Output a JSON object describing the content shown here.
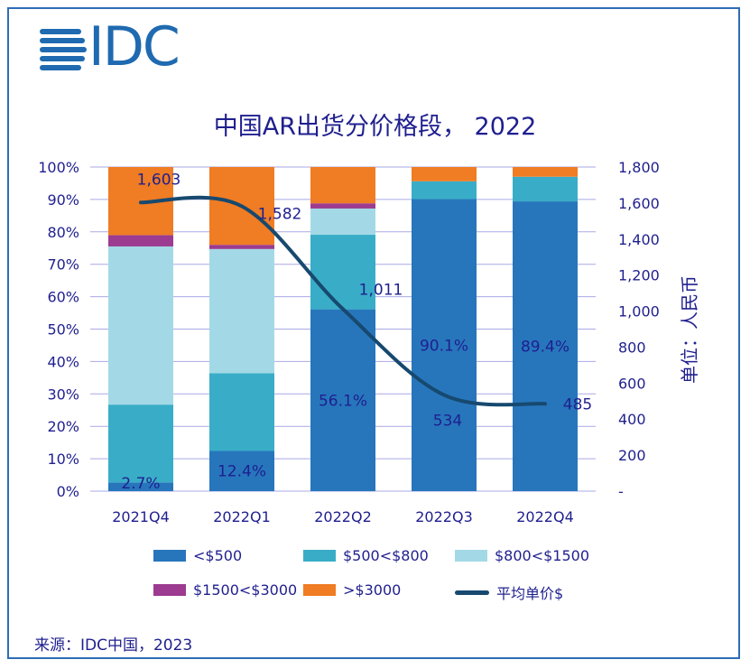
{
  "logo": {
    "text": "IDC"
  },
  "chart_data": {
    "type": "bar",
    "title": "中国AR出货分价格段， 2022",
    "categories": [
      "2021Q4",
      "2022Q1",
      "2022Q2",
      "2022Q3",
      "2022Q4"
    ],
    "series": [
      {
        "name": "<$500",
        "color": "#2776bc",
        "values": [
          2.7,
          12.4,
          56.1,
          90.1,
          89.4
        ]
      },
      {
        "name": "$500<$800",
        "color": "#39adc7",
        "values": [
          24.0,
          24.0,
          23.0,
          5.5,
          7.6
        ]
      },
      {
        "name": "$800<$1500",
        "color": "#a3d9e6",
        "values": [
          48.8,
          38.3,
          8.1,
          0,
          0
        ]
      },
      {
        "name": "$1500<$3000",
        "color": "#9c3b8f",
        "values": [
          3.5,
          1.3,
          1.6,
          0,
          0
        ]
      },
      {
        "name": ">$3000",
        "color": "#f07c23",
        "values": [
          21.0,
          24.0,
          11.2,
          4.4,
          3.0
        ]
      }
    ],
    "line": {
      "name": "平均单价$",
      "color": "#17496f",
      "values": [
        1603,
        1582,
        1011,
        534,
        485
      ]
    },
    "bar_labels": [
      "2.7%",
      "12.4%",
      "56.1%",
      "90.1%",
      "89.4%"
    ],
    "line_labels": [
      "1,603",
      "1,582",
      "1,011",
      "534",
      "485"
    ],
    "y_left": {
      "ticks": [
        "0%",
        "10%",
        "20%",
        "30%",
        "40%",
        "50%",
        "60%",
        "70%",
        "80%",
        "90%",
        "100%"
      ],
      "ylim": [
        0,
        100
      ]
    },
    "y_right": {
      "label": "单位：人民币",
      "ticks": [
        "-",
        "200",
        "400",
        "600",
        "800",
        "1,000",
        "1,200",
        "1,400",
        "1,600",
        "1,800"
      ],
      "ylim": [
        0,
        1800
      ]
    },
    "legend_position": "bottom",
    "grid": true
  },
  "source": "来源：IDC中国，2023"
}
